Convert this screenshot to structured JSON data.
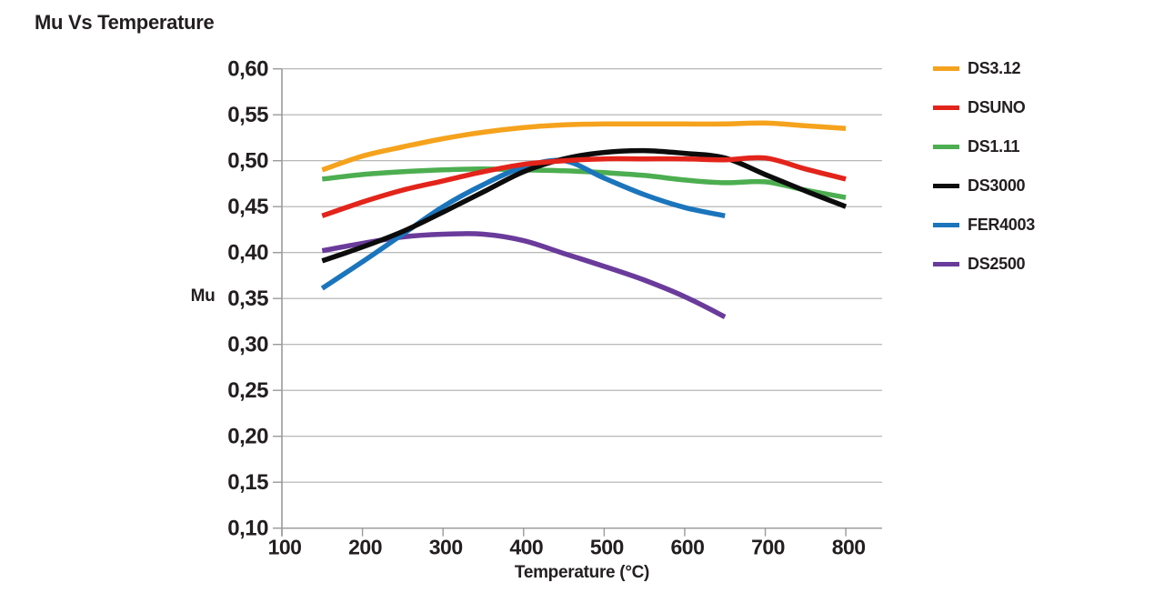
{
  "title": "Mu Vs Temperature",
  "chart_data": {
    "type": "line",
    "title": "Mu Vs Temperature",
    "xlabel": "Temperature (°C)",
    "ylabel": "Mu",
    "xlim": [
      100,
      845
    ],
    "ylim": [
      0.1,
      0.6
    ],
    "grid": "horizontal",
    "legend_position": "right",
    "decimal_separator": ",",
    "xticks": [
      100,
      200,
      300,
      400,
      500,
      600,
      700,
      800
    ],
    "xtick_labels": [
      "100",
      "200",
      "300",
      "400",
      "500",
      "600",
      "700",
      "800"
    ],
    "yticks": [
      0.6,
      0.55,
      0.5,
      0.45,
      0.4,
      0.35,
      0.3,
      0.25,
      0.2,
      0.15,
      0.1
    ],
    "ytick_labels": [
      "0,60",
      "0,55",
      "0,50",
      "0,45",
      "0,40",
      "0,35",
      "0,30",
      "0,25",
      "0,20",
      "0,15",
      "0,10"
    ],
    "series": [
      {
        "name": "DS3.12",
        "color": "#F5A21D",
        "x": [
          150,
          200,
          250,
          300,
          350,
          400,
          450,
          500,
          550,
          600,
          650,
          700,
          750,
          800
        ],
        "y": [
          0.49,
          0.505,
          0.515,
          0.524,
          0.531,
          0.536,
          0.539,
          0.54,
          0.54,
          0.54,
          0.54,
          0.541,
          0.538,
          0.535
        ]
      },
      {
        "name": "DSUNO",
        "color": "#E3241B",
        "x": [
          150,
          200,
          250,
          300,
          350,
          400,
          450,
          500,
          550,
          600,
          650,
          700,
          750,
          800
        ],
        "y": [
          0.44,
          0.455,
          0.468,
          0.478,
          0.488,
          0.496,
          0.5,
          0.502,
          0.502,
          0.502,
          0.501,
          0.503,
          0.491,
          0.48
        ]
      },
      {
        "name": "DS1.11",
        "color": "#4CAE50",
        "x": [
          150,
          200,
          250,
          300,
          350,
          400,
          450,
          500,
          550,
          600,
          650,
          700,
          750,
          800
        ],
        "y": [
          0.48,
          0.485,
          0.488,
          0.49,
          0.491,
          0.49,
          0.489,
          0.487,
          0.484,
          0.479,
          0.476,
          0.477,
          0.468,
          0.46
        ]
      },
      {
        "name": "DS3000",
        "color": "#0C0C0C",
        "x": [
          150,
          200,
          250,
          300,
          350,
          400,
          450,
          500,
          550,
          600,
          650,
          700,
          750,
          800
        ],
        "y": [
          0.391,
          0.406,
          0.423,
          0.444,
          0.466,
          0.488,
          0.502,
          0.509,
          0.511,
          0.508,
          0.503,
          0.485,
          0.467,
          0.45
        ]
      },
      {
        "name": "FER4003",
        "color": "#1B75BC",
        "x": [
          150,
          200,
          250,
          300,
          350,
          400,
          450,
          500,
          550,
          600,
          650
        ],
        "y": [
          0.361,
          0.39,
          0.42,
          0.45,
          0.474,
          0.493,
          0.5,
          0.481,
          0.463,
          0.449,
          0.44
        ]
      },
      {
        "name": "DS2500",
        "color": "#6A3B9B",
        "x": [
          150,
          200,
          250,
          300,
          350,
          400,
          450,
          500,
          550,
          600,
          650
        ],
        "y": [
          0.402,
          0.41,
          0.417,
          0.42,
          0.42,
          0.413,
          0.399,
          0.385,
          0.37,
          0.352,
          0.33
        ]
      }
    ]
  }
}
